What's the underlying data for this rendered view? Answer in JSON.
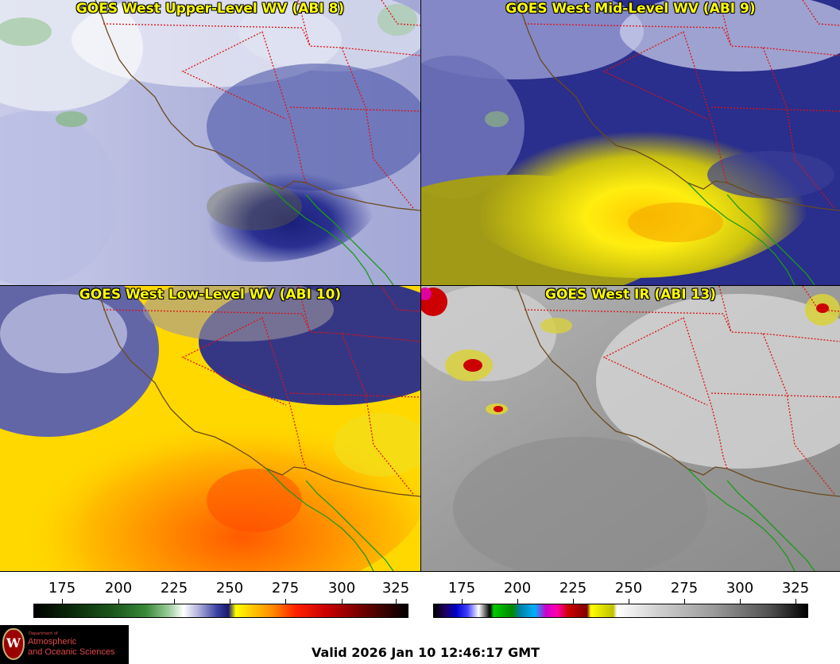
{
  "panels": [
    {
      "title": "GOES West Upper-Level WV (ABI 8)",
      "palette": "wv-upper"
    },
    {
      "title": "GOES West Mid-Level WV (ABI 9)",
      "palette": "wv-mid"
    },
    {
      "title": "GOES West Low-Level WV (ABI 10)",
      "palette": "wv-low"
    },
    {
      "title": "GOES West IR (ABI 13)",
      "palette": "ir"
    }
  ],
  "colorbars": {
    "left_ticks": [
      "175",
      "200",
      "225",
      "250",
      "275",
      "300",
      "325"
    ],
    "right_ticks": [
      "175",
      "200",
      "225",
      "250",
      "275",
      "300",
      "325"
    ]
  },
  "logo": {
    "small": "Department of",
    "line1": "Atmospheric",
    "line2": "and Oceanic Sciences",
    "seal": "W"
  },
  "valid_time": "Valid 2026 Jan 10 12:46:17 GMT",
  "colors": {
    "coast": "#6b4a1e",
    "state_border": "#dd1111",
    "mexico_coast": "#1a9a1a"
  }
}
